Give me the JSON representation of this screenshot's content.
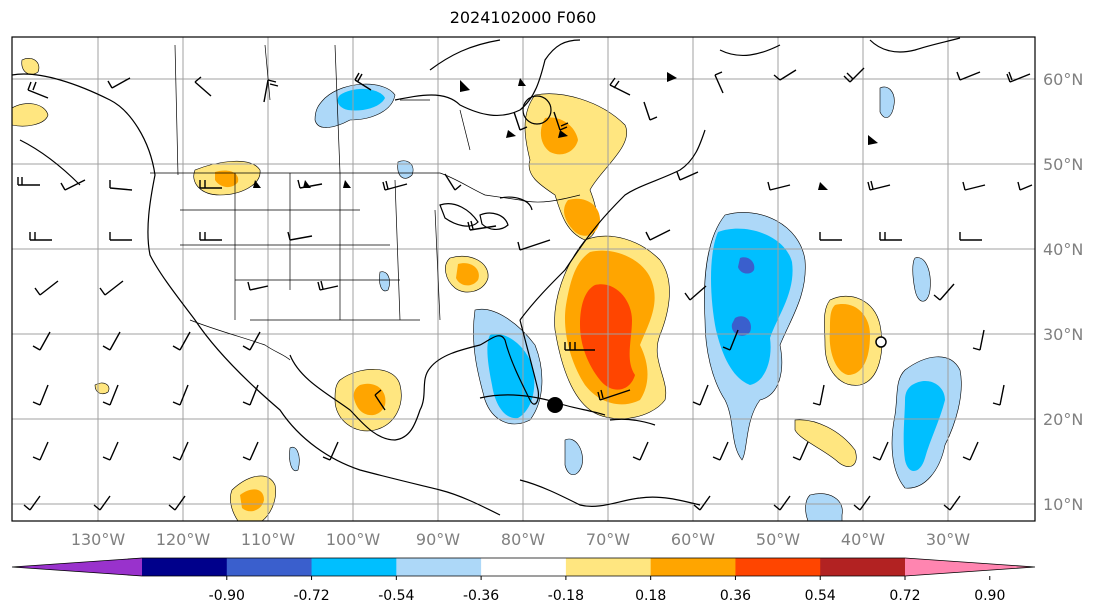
{
  "title": "2024102000 F060",
  "map": {
    "projection": "PlateCarree",
    "lon_range": [
      -140,
      -20
    ],
    "lat_range": [
      7,
      65
    ],
    "lon_ticks": [
      "130°W",
      "120°W",
      "110°W",
      "100°W",
      "90°W",
      "80°W",
      "70°W",
      "60°W",
      "50°W",
      "40°W",
      "30°W"
    ],
    "lat_ticks": [
      "60°N",
      "50°N",
      "40°N",
      "30°N",
      "20°N",
      "10°N"
    ],
    "tick_color": "#808080",
    "storm_markers": [
      "cyclone-symbol",
      "open-circle"
    ]
  },
  "colorbar": {
    "levels": [
      "-0.90",
      "-0.72",
      "-0.54",
      "-0.36",
      "-0.18",
      "0.18",
      "0.36",
      "0.54",
      "0.72",
      "0.90"
    ],
    "colors": [
      "#9932CC",
      "#00008B",
      "#3A5FCD",
      "#00BFFF",
      "#ADD8F8",
      "#FFFFFF",
      "#FFE680",
      "#FFA500",
      "#FF4500",
      "#B22222",
      "#FF85B0"
    ],
    "extend": "both"
  }
}
